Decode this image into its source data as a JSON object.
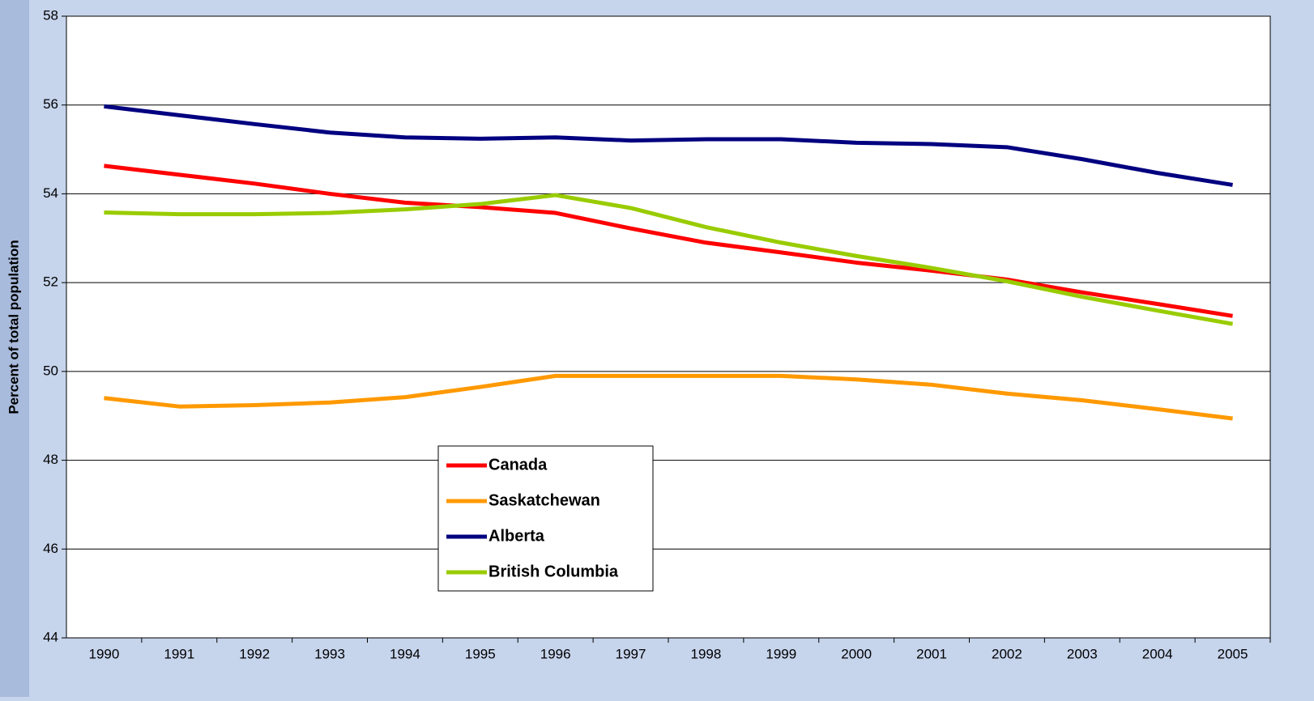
{
  "chart_data": {
    "type": "line",
    "y_label": "Percent of total population",
    "categories": [
      "1990",
      "1991",
      "1992",
      "1993",
      "1994",
      "1995",
      "1996",
      "1997",
      "1998",
      "1999",
      "2000",
      "2001",
      "2002",
      "2003",
      "2004",
      "2005"
    ],
    "ylim": [
      44,
      58
    ],
    "yticks": [
      44,
      46,
      48,
      50,
      52,
      54,
      56,
      58
    ],
    "grid": true,
    "series": [
      {
        "name": "Canada",
        "color": "#ff0000",
        "values": [
          54.63,
          54.43,
          54.23,
          54.0,
          53.8,
          53.7,
          53.57,
          53.22,
          52.9,
          52.68,
          52.45,
          52.27,
          52.07,
          51.78,
          51.52,
          51.25
        ]
      },
      {
        "name": "Saskatchewan",
        "color": "#ff9900",
        "values": [
          49.4,
          49.21,
          49.24,
          49.3,
          49.42,
          49.65,
          49.9,
          49.9,
          49.9,
          49.9,
          49.82,
          49.7,
          49.5,
          49.35,
          49.15,
          48.94
        ]
      },
      {
        "name": "Alberta",
        "color": "#000080",
        "values": [
          55.97,
          55.77,
          55.57,
          55.38,
          55.27,
          55.24,
          55.27,
          55.2,
          55.23,
          55.23,
          55.15,
          55.12,
          55.05,
          54.78,
          54.47,
          54.2
        ]
      },
      {
        "name": "British Columbia",
        "color": "#99cc00",
        "values": [
          53.58,
          53.54,
          53.54,
          53.57,
          53.65,
          53.77,
          53.97,
          53.68,
          53.25,
          52.9,
          52.6,
          52.33,
          52.03,
          51.68,
          51.37,
          51.07
        ]
      }
    ]
  }
}
